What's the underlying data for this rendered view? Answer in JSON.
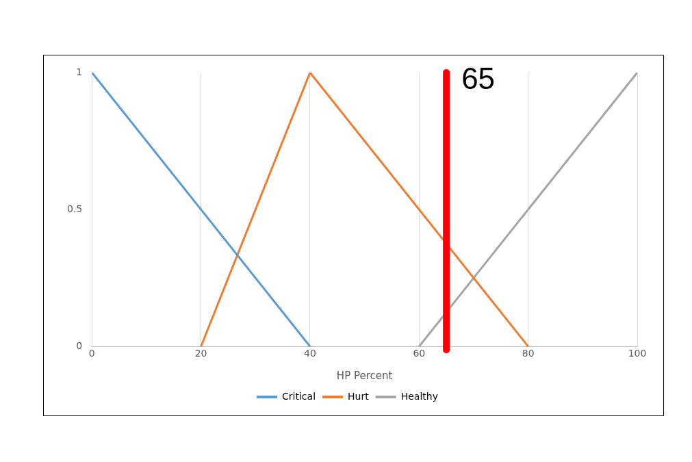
{
  "chart_data": {
    "type": "line",
    "xlabel": "HP Percent",
    "series": [
      {
        "name": "Critical",
        "color": "#5b9bd5",
        "x": [
          0,
          40
        ],
        "values": [
          1,
          0
        ]
      },
      {
        "name": "Hurt",
        "color": "#ed7d31",
        "x": [
          20,
          40,
          80
        ],
        "values": [
          0,
          1,
          0
        ]
      },
      {
        "name": "Healthy",
        "color": "#a5a5a5",
        "x": [
          60,
          100
        ],
        "values": [
          0,
          1
        ]
      }
    ],
    "xlim": [
      0,
      100
    ],
    "xticks": [
      0,
      20,
      40,
      60,
      80,
      100
    ],
    "ylim": [
      0,
      1
    ],
    "yticks": [
      {
        "value": 0,
        "label": "0"
      },
      {
        "value": 0.5,
        "label": "0.5"
      },
      {
        "value": 1,
        "label": "1"
      }
    ],
    "grid": "x",
    "legend": "bottom",
    "marker": "none",
    "line_style": "solid",
    "ref_lines": [
      {
        "axis": "x",
        "value": 65,
        "label": "65",
        "color": "#ff0000"
      }
    ]
  }
}
